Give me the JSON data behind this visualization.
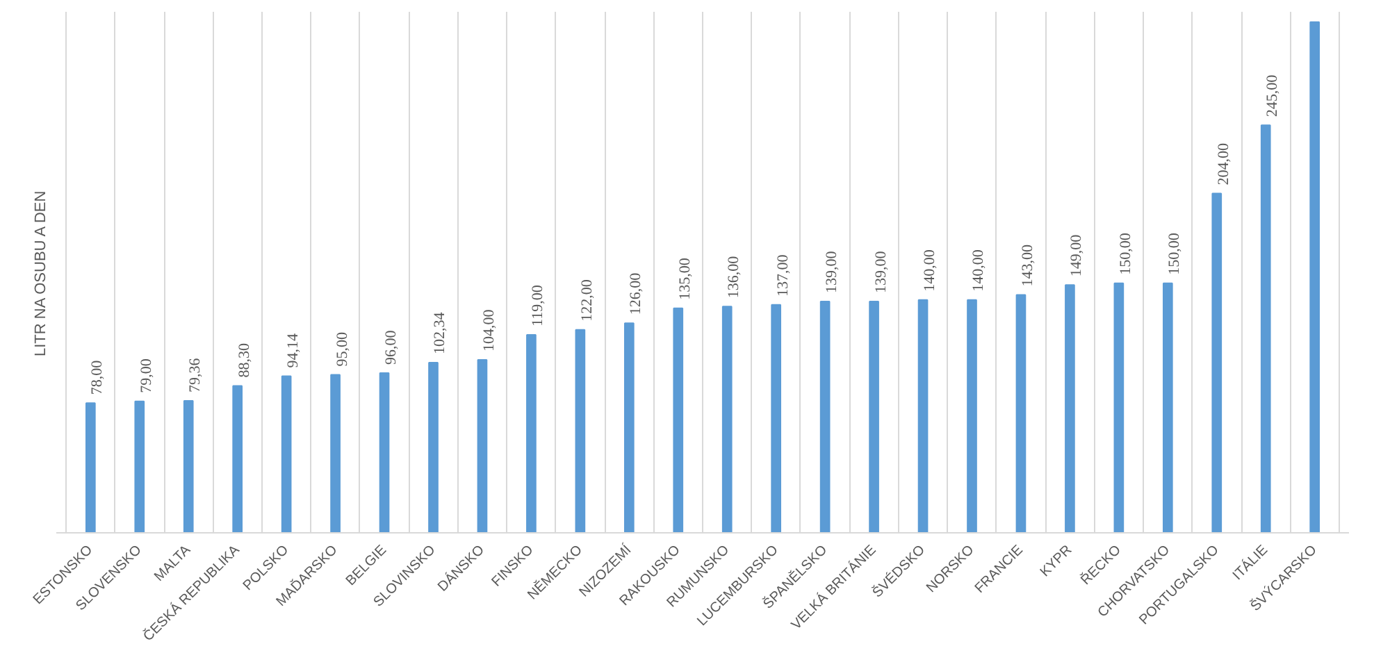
{
  "chart_data": {
    "type": "bar",
    "ylabel": "LITR NA OSUBU A DEN",
    "categories": [
      "ESTONSKO",
      "SLOVENSKO",
      "MALTA",
      "ČESKÁ REPUBLIKA",
      "POLSKO",
      "MAĎARSKO",
      "BELGIE",
      "SLOVINSKO",
      "DÁNSKO",
      "FINSKO",
      "NĚMECKO",
      "NIZOZEMÍ",
      "RAKOUSKO",
      "RUMUNSKO",
      "LUCEMBURSKO",
      "ŠPANĚLSKO",
      "VELKÁ BRITÁNIE",
      "ŠVÉDSKO",
      "NORSKO",
      "FRANCIE",
      "KYPR",
      "ŘECKO",
      "CHORVATSKO",
      "PORTUGALSKO",
      "ITÁLIE",
      "ŠVÝCARSKO"
    ],
    "values": [
      78,
      79,
      79.36,
      88.3,
      94.14,
      95,
      96,
      102.34,
      104,
      119,
      122,
      126,
      135,
      136,
      137,
      139,
      139,
      140,
      140,
      143,
      149,
      150,
      150,
      204,
      245,
      307
    ],
    "value_labels": [
      "78,00",
      "79,00",
      "79,36",
      "88,30",
      "94,14",
      "95,00",
      "96,00",
      "102,34",
      "104,00",
      "119,00",
      "122,00",
      "126,00",
      "135,00",
      "136,00",
      "137,00",
      "139,00",
      "139,00",
      "140,00",
      "140,00",
      "143,00",
      "149,00",
      "150,00",
      "150,00",
      "204,00",
      "245,00",
      null
    ],
    "color": "#5b9bd5",
    "grid": "x"
  }
}
